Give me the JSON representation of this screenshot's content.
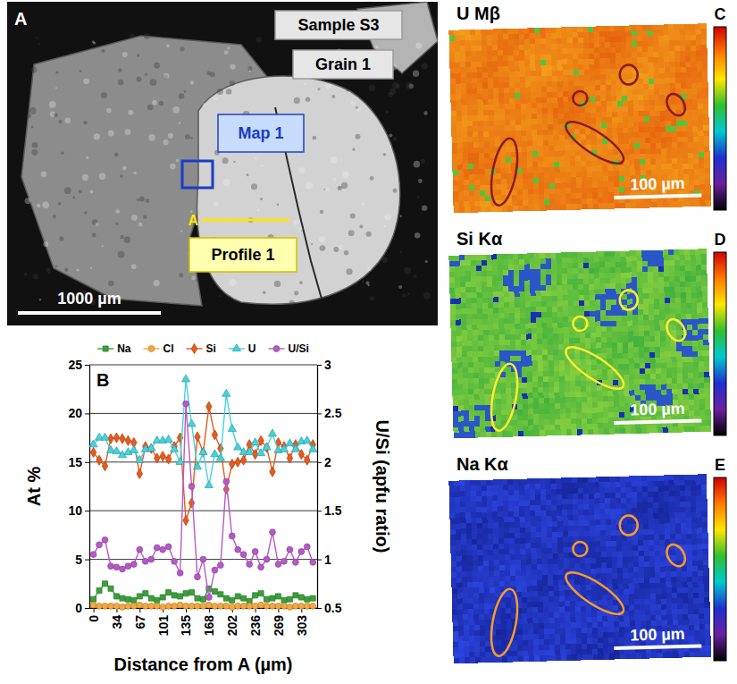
{
  "chart_data": {
    "type": "line",
    "annotations": [
      "B"
    ],
    "x_label": "Distance from A (µm)",
    "y_label": "At %",
    "y2_label": "U/Si (apfu ratio)",
    "x": [
      0,
      8.4,
      16.8,
      25.3,
      33.7,
      42.1,
      50.5,
      58.9,
      67.3,
      75.8,
      84.2,
      92.6,
      101,
      109.4,
      117.8,
      126.3,
      134.7,
      143.1,
      151.5,
      159.9,
      168.3,
      176.8,
      185.2,
      193.6,
      202,
      210.4,
      218.8,
      227.3,
      235.7,
      244.1,
      252.5,
      260.9,
      269.3,
      277.8,
      286.2,
      294.6,
      303,
      311.4,
      319.8
    ],
    "xlim": [
      -6,
      326
    ],
    "xticks": [
      0,
      {
        "value": 33.7,
        "label": "34"
      },
      {
        "value": 67.3,
        "label": "67"
      },
      101,
      {
        "value": 134.7,
        "label": "135"
      },
      {
        "value": 168.3,
        "label": "168"
      },
      202,
      {
        "value": 235.7,
        "label": "236"
      },
      {
        "value": 269.3,
        "label": "269"
      },
      303
    ],
    "ylim": [
      0,
      25
    ],
    "yticks": [
      0,
      5,
      10,
      15,
      20,
      25
    ],
    "y2lim": [
      0.5,
      3
    ],
    "y2ticks": [
      0.5,
      1,
      1.5,
      2,
      2.5,
      3
    ],
    "grid": true,
    "legend": "top",
    "series": [
      {
        "name": "Na",
        "color": "#3aa13a",
        "marker": "square",
        "values": [
          0.9,
          1.8,
          2.5,
          2.0,
          1.2,
          1.0,
          0.9,
          0.8,
          1.2,
          1.5,
          1.0,
          0.8,
          1.1,
          1.6,
          1.3,
          1.2,
          1.5,
          1.6,
          1.0,
          0.9,
          2.0,
          1.7,
          1.4,
          1.0,
          0.8,
          1.2,
          1.0,
          0.7,
          1.3,
          1.5,
          0.9,
          1.0,
          1.2,
          0.8,
          0.9,
          1.3,
          1.1,
          0.9,
          1.0
        ]
      },
      {
        "name": "Cl",
        "color": "#f5a840",
        "marker": "circle",
        "values": [
          0.3,
          0.2,
          0.2,
          0.2,
          0.2,
          0.1,
          0.2,
          0.2,
          0.3,
          0.2,
          0.2,
          0.2,
          0.1,
          0.2,
          0.2,
          0.3,
          0.2,
          0.2,
          0.2,
          0.2,
          0.3,
          0.2,
          0.2,
          0.2,
          0.1,
          0.2,
          0.2,
          0.2,
          0.2,
          0.3,
          0.2,
          0.2,
          0.2,
          0.2,
          0.1,
          0.2,
          0.2,
          0.2,
          0.2
        ]
      },
      {
        "name": "Si",
        "color": "#e85a1c",
        "marker": "diamond",
        "values": [
          16.0,
          15.2,
          14.6,
          17.4,
          17.5,
          17.4,
          17.2,
          17.0,
          13.8,
          16.6,
          16.4,
          15.4,
          15.6,
          15.3,
          16.6,
          17.5,
          9.0,
          10.8,
          17.6,
          16.0,
          20.7,
          17.8,
          16.4,
          12.2,
          14.8,
          15.0,
          15.2,
          16.8,
          15.8,
          17.2,
          16.5,
          14.0,
          17.0,
          16.6,
          15.4,
          16.8,
          15.8,
          15.2,
          16.8
        ]
      },
      {
        "name": "U",
        "color": "#45d3dc",
        "marker": "triangle",
        "values": [
          16.8,
          17.5,
          17.5,
          16.2,
          16.1,
          15.7,
          16.0,
          16.2,
          15.2,
          16.3,
          16.4,
          17.2,
          17.2,
          17.3,
          16.3,
          15.0,
          23.5,
          18.9,
          14.5,
          16.0,
          12.6,
          15.8,
          15.4,
          22.0,
          18.4,
          16.5,
          16.0,
          16.0,
          17.0,
          15.9,
          16.5,
          17.9,
          16.2,
          16.3,
          16.9,
          16.3,
          17.1,
          17.2,
          16.3
        ]
      },
      {
        "name": "U/Si",
        "color": "#b65ac8",
        "marker": "circle",
        "axis": "y2",
        "values": [
          1.05,
          1.15,
          1.2,
          0.93,
          0.92,
          0.9,
          0.93,
          0.95,
          1.1,
          0.98,
          1.0,
          1.12,
          1.1,
          1.13,
          0.98,
          0.86,
          2.6,
          1.75,
          0.82,
          1.0,
          0.61,
          0.89,
          0.94,
          1.8,
          1.24,
          1.1,
          1.05,
          0.95,
          1.08,
          0.92,
          1.0,
          1.28,
          0.95,
          0.98,
          1.1,
          0.97,
          1.08,
          1.13,
          0.97
        ]
      }
    ]
  },
  "panels": [
    {
      "letter": "A",
      "sample": "Sample S3",
      "grain": "Grain 1",
      "map": "Map 1",
      "profile": "Profile 1",
      "profile_start": "A",
      "scale_bar": "1000 µm"
    },
    {
      "letter": "C",
      "title": "U Mβ",
      "scale_bar": "100 µm"
    },
    {
      "letter": "D",
      "title": "Si Kα",
      "scale_bar": "100 µm"
    },
    {
      "letter": "E",
      "title": "Na Kα",
      "scale_bar": "100 µm"
    }
  ]
}
